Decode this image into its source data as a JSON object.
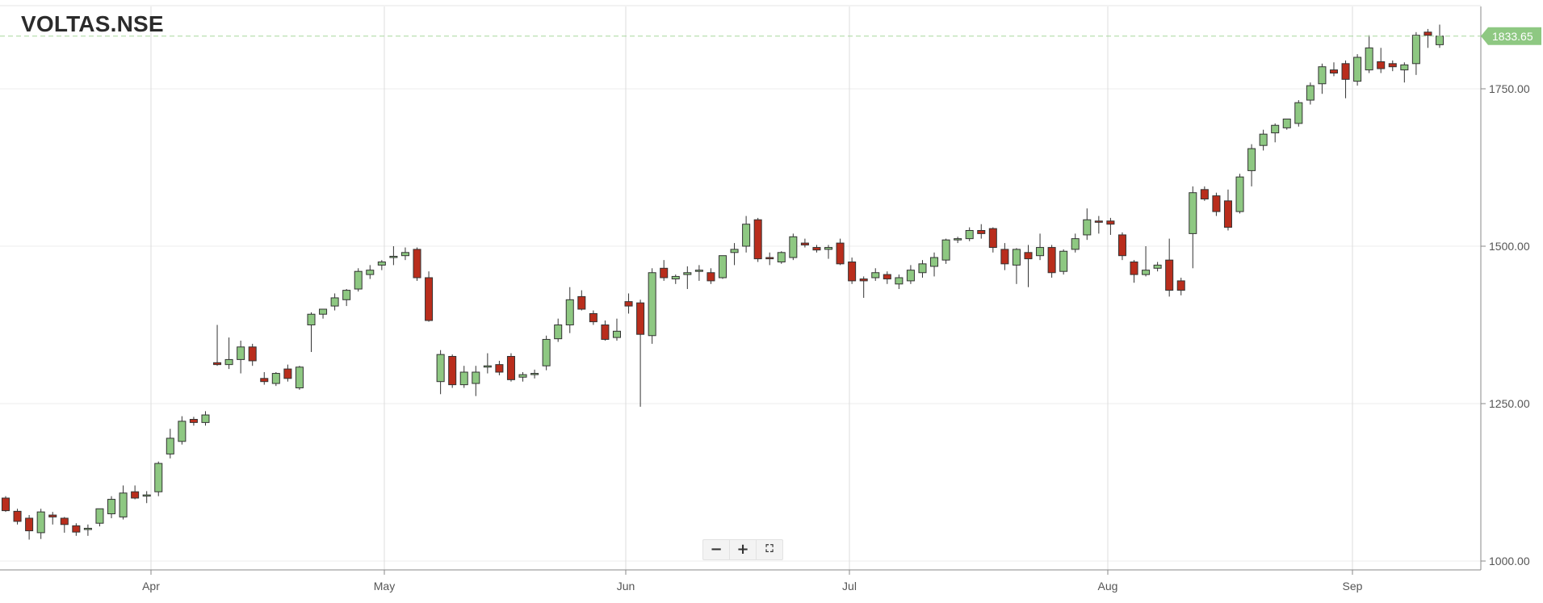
{
  "title": "VOLTAS.NSE",
  "zoom_controls": {
    "zoom_out": "−",
    "zoom_in": "+",
    "fullscreen": "⛶"
  },
  "colors": {
    "up": "#8ec882",
    "down": "#b92d1c",
    "last_price_tag": "#8ec882"
  },
  "chart_data": {
    "type": "candlestick",
    "symbol": "VOLTAS.NSE",
    "last_price": 1833.65,
    "last_price_label": "1833.65",
    "y_ticks": [
      1000,
      1250,
      1500,
      1750
    ],
    "y_tick_labels": [
      "1000.00",
      "1250.00",
      "1500.00",
      "1750.00"
    ],
    "ylim": [
      980,
      1870
    ],
    "x_months": [
      "Apr",
      "May",
      "Jun",
      "Jul",
      "Aug",
      "Sep"
    ],
    "grid": true,
    "candles": [
      [
        1100,
        1103,
        1078,
        1080
      ],
      [
        1079,
        1083,
        1058,
        1063
      ],
      [
        1068,
        1073,
        1034,
        1048
      ],
      [
        1045,
        1083,
        1035,
        1078
      ],
      [
        1073,
        1078,
        1058,
        1070
      ],
      [
        1068,
        1070,
        1045,
        1058
      ],
      [
        1056,
        1060,
        1040,
        1046
      ],
      [
        1050,
        1058,
        1040,
        1052
      ],
      [
        1060,
        1083,
        1055,
        1083
      ],
      [
        1075,
        1103,
        1068,
        1098
      ],
      [
        1070,
        1120,
        1066,
        1108
      ],
      [
        1110,
        1120,
        1098,
        1100
      ],
      [
        1105,
        1111,
        1092,
        1105
      ],
      [
        1110,
        1158,
        1103,
        1155
      ],
      [
        1170,
        1210,
        1163,
        1195
      ],
      [
        1190,
        1230,
        1185,
        1222
      ],
      [
        1225,
        1229,
        1215,
        1220
      ],
      [
        1220,
        1238,
        1215,
        1232
      ],
      [
        1315,
        1375,
        1310,
        1312
      ],
      [
        1312,
        1355,
        1305,
        1320
      ],
      [
        1320,
        1350,
        1298,
        1340
      ],
      [
        1340,
        1345,
        1310,
        1318
      ],
      [
        1290,
        1300,
        1280,
        1285
      ],
      [
        1282,
        1300,
        1278,
        1298
      ],
      [
        1305,
        1312,
        1285,
        1290
      ],
      [
        1275,
        1310,
        1272,
        1308
      ],
      [
        1375,
        1395,
        1332,
        1392
      ],
      [
        1392,
        1400,
        1385,
        1400
      ],
      [
        1405,
        1425,
        1398,
        1418
      ],
      [
        1415,
        1432,
        1405,
        1430
      ],
      [
        1432,
        1465,
        1428,
        1460
      ],
      [
        1455,
        1470,
        1448,
        1462
      ],
      [
        1470,
        1478,
        1462,
        1475
      ],
      [
        1482,
        1500,
        1470,
        1484
      ],
      [
        1485,
        1498,
        1478,
        1490
      ],
      [
        1495,
        1498,
        1445,
        1450
      ],
      [
        1450,
        1460,
        1380,
        1382
      ],
      [
        1285,
        1335,
        1265,
        1328
      ],
      [
        1325,
        1328,
        1275,
        1280
      ],
      [
        1280,
        1310,
        1275,
        1300
      ],
      [
        1282,
        1310,
        1262,
        1300
      ],
      [
        1308,
        1330,
        1298,
        1310
      ],
      [
        1312,
        1318,
        1295,
        1300
      ],
      [
        1325,
        1330,
        1285,
        1288
      ],
      [
        1292,
        1300,
        1285,
        1296
      ],
      [
        1298,
        1304,
        1290,
        1298
      ],
      [
        1310,
        1358,
        1303,
        1352
      ],
      [
        1353,
        1385,
        1348,
        1375
      ],
      [
        1375,
        1435,
        1362,
        1415
      ],
      [
        1420,
        1430,
        1398,
        1400
      ],
      [
        1393,
        1398,
        1375,
        1380
      ],
      [
        1375,
        1382,
        1350,
        1352
      ],
      [
        1355,
        1385,
        1350,
        1365
      ],
      [
        1412,
        1425,
        1393,
        1405
      ],
      [
        1410,
        1415,
        1245,
        1360
      ],
      [
        1358,
        1465,
        1345,
        1458
      ],
      [
        1465,
        1478,
        1445,
        1450
      ],
      [
        1448,
        1455,
        1440,
        1452
      ],
      [
        1455,
        1468,
        1432,
        1458
      ],
      [
        1460,
        1470,
        1445,
        1462
      ],
      [
        1458,
        1465,
        1440,
        1445
      ],
      [
        1450,
        1485,
        1448,
        1485
      ],
      [
        1490,
        1505,
        1470,
        1495
      ],
      [
        1500,
        1548,
        1490,
        1535
      ],
      [
        1542,
        1545,
        1475,
        1480
      ],
      [
        1482,
        1490,
        1470,
        1480
      ],
      [
        1475,
        1492,
        1472,
        1490
      ],
      [
        1482,
        1520,
        1478,
        1515
      ],
      [
        1505,
        1512,
        1498,
        1502
      ],
      [
        1498,
        1502,
        1490,
        1494
      ],
      [
        1495,
        1502,
        1480,
        1498
      ],
      [
        1505,
        1512,
        1470,
        1472
      ],
      [
        1475,
        1482,
        1440,
        1445
      ],
      [
        1448,
        1452,
        1418,
        1445
      ],
      [
        1450,
        1465,
        1445,
        1458
      ],
      [
        1455,
        1460,
        1440,
        1448
      ],
      [
        1440,
        1455,
        1432,
        1450
      ],
      [
        1445,
        1470,
        1440,
        1462
      ],
      [
        1458,
        1478,
        1450,
        1472
      ],
      [
        1468,
        1490,
        1452,
        1482
      ],
      [
        1478,
        1512,
        1472,
        1510
      ],
      [
        1510,
        1515,
        1505,
        1512
      ],
      [
        1512,
        1530,
        1508,
        1525
      ],
      [
        1525,
        1535,
        1512,
        1520
      ],
      [
        1528,
        1530,
        1490,
        1498
      ],
      [
        1495,
        1505,
        1462,
        1472
      ],
      [
        1470,
        1497,
        1440,
        1495
      ],
      [
        1490,
        1502,
        1435,
        1480
      ],
      [
        1485,
        1520,
        1478,
        1498
      ],
      [
        1498,
        1502,
        1450,
        1458
      ],
      [
        1460,
        1495,
        1455,
        1492
      ],
      [
        1495,
        1520,
        1490,
        1512
      ],
      [
        1518,
        1560,
        1510,
        1542
      ],
      [
        1540,
        1548,
        1520,
        1538
      ],
      [
        1540,
        1545,
        1518,
        1535
      ],
      [
        1518,
        1522,
        1478,
        1485
      ],
      [
        1475,
        1478,
        1442,
        1455
      ],
      [
        1455,
        1500,
        1452,
        1462
      ],
      [
        1465,
        1475,
        1460,
        1470
      ],
      [
        1478,
        1512,
        1420,
        1430
      ],
      [
        1445,
        1450,
        1422,
        1430
      ],
      [
        1520,
        1595,
        1465,
        1585
      ],
      [
        1590,
        1595,
        1572,
        1575
      ],
      [
        1580,
        1585,
        1548,
        1555
      ],
      [
        1572,
        1590,
        1525,
        1530
      ],
      [
        1555,
        1615,
        1552,
        1610
      ],
      [
        1620,
        1662,
        1595,
        1655
      ],
      [
        1660,
        1685,
        1652,
        1678
      ],
      [
        1680,
        1695,
        1665,
        1692
      ],
      [
        1688,
        1702,
        1685,
        1702
      ],
      [
        1695,
        1732,
        1690,
        1728
      ],
      [
        1732,
        1760,
        1725,
        1755
      ],
      [
        1758,
        1790,
        1742,
        1785
      ],
      [
        1780,
        1792,
        1770,
        1775
      ],
      [
        1790,
        1795,
        1735,
        1765
      ],
      [
        1762,
        1805,
        1755,
        1800
      ],
      [
        1780,
        1835,
        1775,
        1815
      ],
      [
        1793,
        1815,
        1775,
        1782
      ],
      [
        1790,
        1795,
        1778,
        1785
      ],
      [
        1780,
        1792,
        1760,
        1788
      ],
      [
        1790,
        1840,
        1772,
        1835
      ],
      [
        1840,
        1845,
        1815,
        1835
      ],
      [
        1820,
        1852,
        1815,
        1833.65
      ]
    ]
  }
}
